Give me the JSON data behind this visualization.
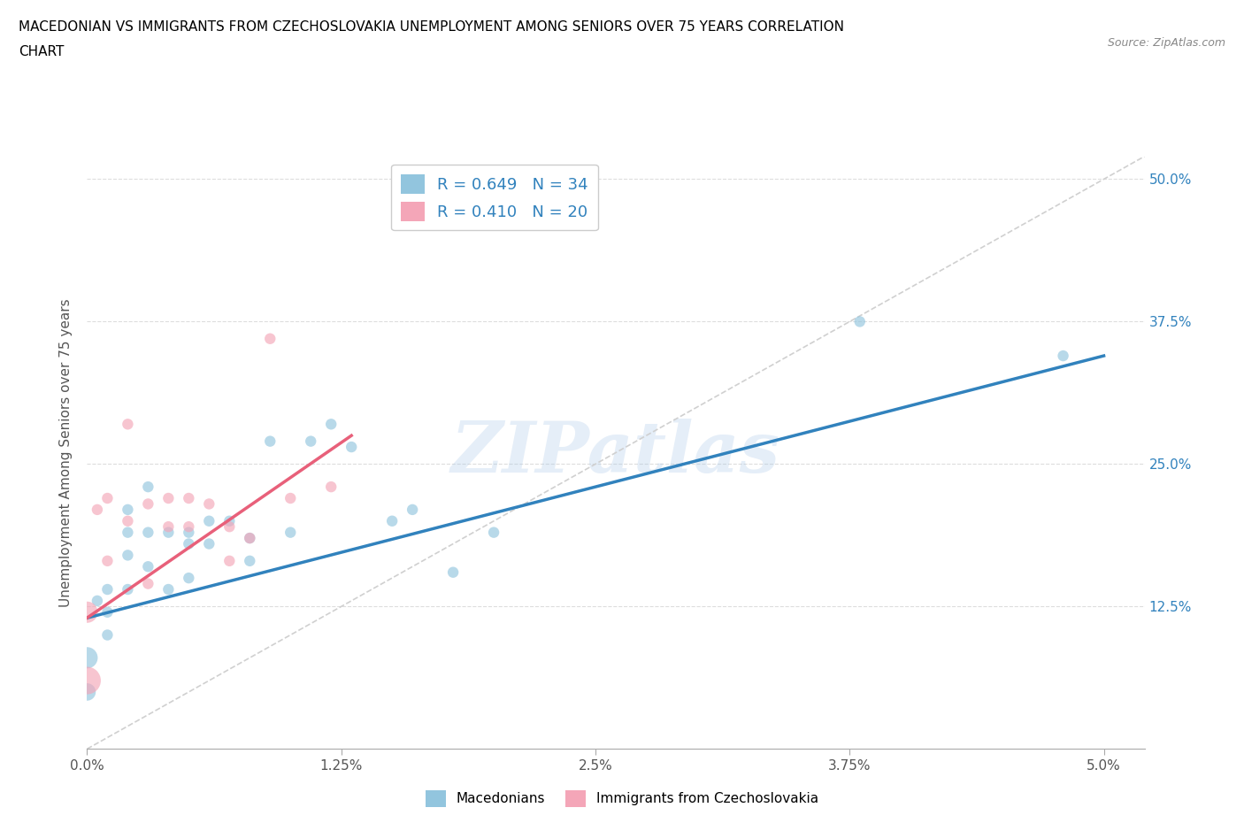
{
  "title_line1": "MACEDONIAN VS IMMIGRANTS FROM CZECHOSLOVAKIA UNEMPLOYMENT AMONG SENIORS OVER 75 YEARS CORRELATION",
  "title_line2": "CHART",
  "source": "Source: ZipAtlas.com",
  "ylabel": "Unemployment Among Seniors over 75 years",
  "xlim": [
    0.0,
    0.052
  ],
  "ylim": [
    0.0,
    0.52
  ],
  "yticks": [
    0.0,
    0.125,
    0.25,
    0.375,
    0.5
  ],
  "xticks": [
    0.0,
    0.0125,
    0.025,
    0.0375,
    0.05
  ],
  "macedonians_R": 0.649,
  "macedonians_N": 34,
  "czechoslovakia_R": 0.41,
  "czechoslovakia_N": 20,
  "blue_color": "#92c5de",
  "pink_color": "#f4a6b8",
  "blue_line_color": "#3182bd",
  "pink_line_color": "#e8607a",
  "diagonal_color": "#d0d0d0",
  "macedonians_x": [
    0.0,
    0.0,
    0.0005,
    0.001,
    0.001,
    0.001,
    0.002,
    0.002,
    0.002,
    0.002,
    0.003,
    0.003,
    0.003,
    0.004,
    0.004,
    0.005,
    0.005,
    0.005,
    0.006,
    0.006,
    0.007,
    0.008,
    0.008,
    0.009,
    0.01,
    0.011,
    0.012,
    0.013,
    0.015,
    0.016,
    0.018,
    0.02,
    0.038,
    0.048
  ],
  "macedonians_y": [
    0.08,
    0.05,
    0.13,
    0.12,
    0.14,
    0.1,
    0.21,
    0.19,
    0.17,
    0.14,
    0.23,
    0.19,
    0.16,
    0.19,
    0.14,
    0.19,
    0.18,
    0.15,
    0.2,
    0.18,
    0.2,
    0.185,
    0.165,
    0.27,
    0.19,
    0.27,
    0.285,
    0.265,
    0.2,
    0.21,
    0.155,
    0.19,
    0.375,
    0.345
  ],
  "macedonians_size": [
    300,
    200,
    80,
    80,
    80,
    80,
    80,
    80,
    80,
    80,
    80,
    80,
    80,
    80,
    80,
    80,
    80,
    80,
    80,
    80,
    80,
    80,
    80,
    80,
    80,
    80,
    80,
    80,
    80,
    80,
    80,
    80,
    80,
    80
  ],
  "czechoslovakia_x": [
    0.0,
    0.0,
    0.0005,
    0.001,
    0.001,
    0.002,
    0.002,
    0.003,
    0.003,
    0.004,
    0.004,
    0.005,
    0.005,
    0.006,
    0.007,
    0.007,
    0.008,
    0.009,
    0.01,
    0.012
  ],
  "czechoslovakia_y": [
    0.06,
    0.12,
    0.21,
    0.165,
    0.22,
    0.2,
    0.285,
    0.145,
    0.215,
    0.22,
    0.195,
    0.22,
    0.195,
    0.215,
    0.195,
    0.165,
    0.185,
    0.36,
    0.22,
    0.23
  ],
  "czechoslovakia_size": [
    500,
    300,
    80,
    80,
    80,
    80,
    80,
    80,
    80,
    80,
    80,
    80,
    80,
    80,
    80,
    80,
    80,
    80,
    80,
    80
  ],
  "mac_line_x0": 0.0,
  "mac_line_x1": 0.05,
  "mac_line_y0": 0.115,
  "mac_line_y1": 0.345,
  "cze_line_x0": 0.0,
  "cze_line_x1": 0.013,
  "cze_line_y0": 0.115,
  "cze_line_y1": 0.275,
  "watermark": "ZIPatlas"
}
